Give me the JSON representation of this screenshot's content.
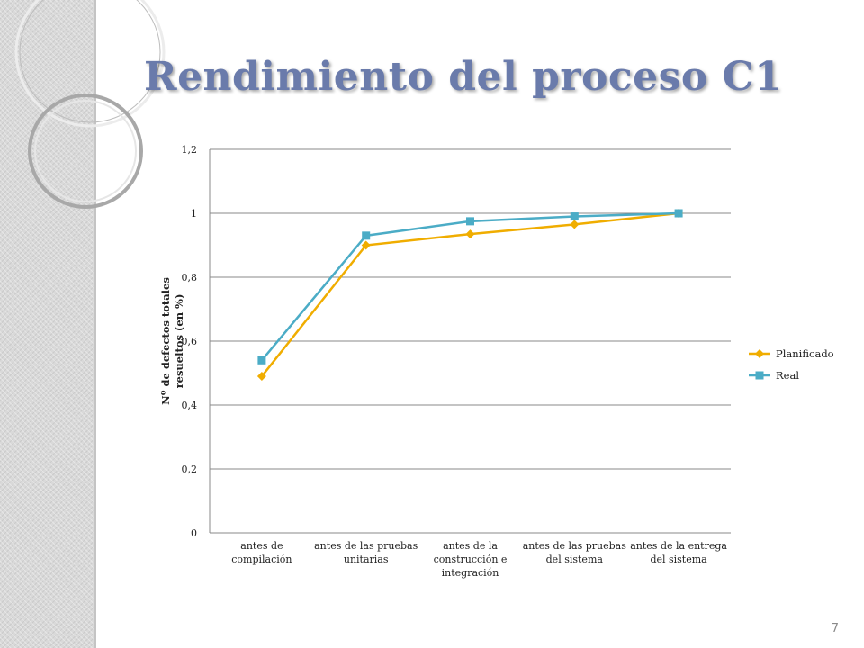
{
  "slide": {
    "title": "Rendimiento del proceso C1",
    "page_number": "7"
  },
  "colors": {
    "title": "#6a7bab",
    "planificado": "#f0ad00",
    "real": "#4bacc6",
    "gridline": "#888888"
  },
  "chart_data": {
    "type": "line",
    "title": "",
    "xlabel": "",
    "ylabel": "Nº de defectos totales resueltos (en %)",
    "ylabel_lines": [
      "Nº de defectos totales",
      "resueltos (en %)"
    ],
    "ylim": [
      0,
      1.2
    ],
    "y_ticks": [
      "0",
      "0,2",
      "0,4",
      "0,6",
      "0,8",
      "1",
      "1,2"
    ],
    "y_tick_values": [
      0,
      0.2,
      0.4,
      0.6,
      0.8,
      1.0,
      1.2
    ],
    "grid": true,
    "legend_position": "right",
    "categories": [
      [
        "antes de",
        "compilación"
      ],
      [
        "antes de las pruebas",
        "unitarias"
      ],
      [
        "antes de la",
        "construcción e",
        "integración"
      ],
      [
        "antes de las pruebas",
        "del sistema"
      ],
      [
        "antes de la entrega",
        "del sistema"
      ]
    ],
    "series": [
      {
        "name": "Planificado",
        "marker": "diamond",
        "color": "#f0ad00",
        "values": [
          0.49,
          0.9,
          0.935,
          0.965,
          1.0
        ]
      },
      {
        "name": "Real",
        "marker": "square",
        "color": "#4bacc6",
        "values": [
          0.54,
          0.93,
          0.975,
          0.99,
          1.0
        ]
      }
    ]
  }
}
